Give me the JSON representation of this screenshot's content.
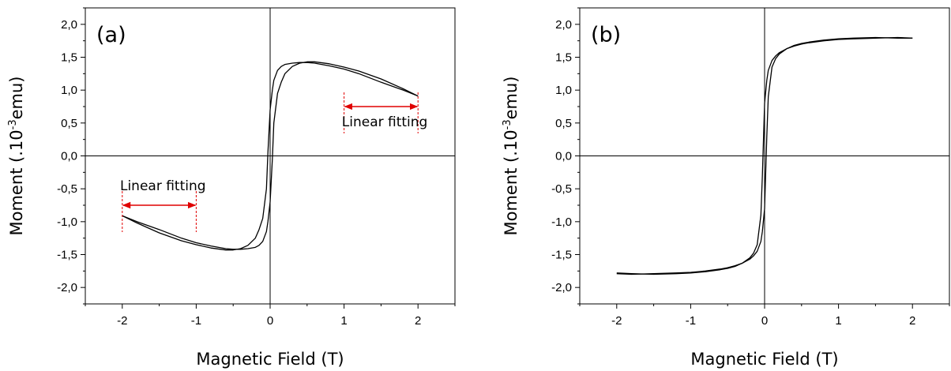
{
  "chart_data": [
    {
      "type": "line",
      "panel_label": "(a)",
      "xlabel": "Magnetic Field (T)",
      "ylabel_main": "Moment (.10",
      "ylabel_sup": "-3",
      "ylabel_end": "emu)",
      "xlim": [
        -2.5,
        2.5
      ],
      "ylim": [
        -2.25,
        2.25
      ],
      "xticks": [
        -2,
        -1,
        0,
        1,
        2
      ],
      "xtick_labels": [
        "-2",
        "-1",
        "0",
        "1",
        "2"
      ],
      "yticks": [
        -2.0,
        -1.5,
        -1.0,
        -0.5,
        0.0,
        0.5,
        1.0,
        1.5,
        2.0
      ],
      "ytick_labels": [
        "-2,0",
        "-1,5",
        "-1,0",
        "-0,5",
        "0,0",
        "0,5",
        "1,0",
        "1,5",
        "2,0"
      ],
      "reference_lines": {
        "x": 0,
        "y": 0
      },
      "series": [
        {
          "x": [
            -2.0,
            -1.8,
            -1.5,
            -1.2,
            -1.0,
            -0.8,
            -0.6,
            -0.5,
            -0.4,
            -0.3,
            -0.2,
            -0.15,
            -0.1,
            -0.05,
            -0.03,
            0.0,
            0.03,
            0.05,
            0.1,
            0.15,
            0.2,
            0.3,
            0.4,
            0.5,
            0.6,
            0.8,
            1.0,
            1.2,
            1.5,
            1.8,
            2.0
          ],
          "y": [
            -0.91,
            -1.02,
            -1.17,
            -1.29,
            -1.35,
            -1.4,
            -1.43,
            -1.43,
            -1.41,
            -1.36,
            -1.25,
            -1.12,
            -0.95,
            -0.5,
            0.05,
            0.7,
            1.0,
            1.15,
            1.3,
            1.36,
            1.39,
            1.41,
            1.42,
            1.42,
            1.41,
            1.37,
            1.32,
            1.25,
            1.12,
            1.0,
            0.91
          ],
          "color": "#000000"
        },
        {
          "x": [
            -2.0,
            -1.8,
            -1.5,
            -1.2,
            -1.0,
            -0.8,
            -0.6,
            -0.5,
            -0.4,
            -0.3,
            -0.2,
            -0.15,
            -0.1,
            -0.05,
            -0.03,
            0.0,
            0.03,
            0.05,
            0.1,
            0.15,
            0.2,
            0.3,
            0.4,
            0.5,
            0.6,
            0.8,
            1.0,
            1.2,
            1.5,
            1.8,
            2.0
          ],
          "y": [
            -0.91,
            -1.0,
            -1.12,
            -1.25,
            -1.32,
            -1.37,
            -1.41,
            -1.42,
            -1.42,
            -1.41,
            -1.39,
            -1.36,
            -1.3,
            -1.15,
            -1.0,
            -0.7,
            -0.05,
            0.5,
            0.95,
            1.12,
            1.25,
            1.36,
            1.41,
            1.43,
            1.43,
            1.4,
            1.35,
            1.29,
            1.17,
            1.02,
            0.91
          ],
          "color": "#000000"
        }
      ],
      "annotations": [
        {
          "text": "Linear fitting",
          "x_range": [
            -2,
            -1
          ],
          "arrow_y": -0.75,
          "text_x": -1.45,
          "text_y": -0.52,
          "color": "#e00000"
        },
        {
          "text": "Linear fitting",
          "x_range": [
            1,
            2
          ],
          "arrow_y": 0.75,
          "text_x": 1.55,
          "text_y": 0.45,
          "color": "#e00000"
        }
      ]
    },
    {
      "type": "line",
      "panel_label": "(b)",
      "xlabel": "Magnetic Field (T)",
      "ylabel_main": "Moment (.10",
      "ylabel_sup": "-3",
      "ylabel_end": "emu)",
      "xlim": [
        -2.5,
        2.5
      ],
      "ylim": [
        -2.25,
        2.25
      ],
      "xticks": [
        -2,
        -1,
        0,
        1,
        2
      ],
      "xtick_labels": [
        "-2",
        "-1",
        "0",
        "1",
        "2"
      ],
      "yticks": [
        -2.0,
        -1.5,
        -1.0,
        -0.5,
        0.0,
        0.5,
        1.0,
        1.5,
        2.0
      ],
      "ytick_labels": [
        "-2,0",
        "-1,5",
        "-1,0",
        "-0,5",
        "0,0",
        "0,5",
        "1,0",
        "1,5",
        "2,0"
      ],
      "reference_lines": {
        "x": 0,
        "y": 0
      },
      "series": [
        {
          "x": [
            -2.0,
            -1.8,
            -1.5,
            -1.2,
            -1.0,
            -0.8,
            -0.6,
            -0.5,
            -0.4,
            -0.3,
            -0.2,
            -0.15,
            -0.1,
            -0.05,
            -0.03,
            0.0,
            0.03,
            0.05,
            0.1,
            0.15,
            0.2,
            0.3,
            0.4,
            0.5,
            0.6,
            0.8,
            1.0,
            1.2,
            1.5,
            1.8,
            2.0
          ],
          "y": [
            -1.78,
            -1.79,
            -1.8,
            -1.79,
            -1.78,
            -1.76,
            -1.73,
            -1.71,
            -1.68,
            -1.63,
            -1.55,
            -1.48,
            -1.35,
            -0.9,
            -0.3,
            0.8,
            1.15,
            1.3,
            1.45,
            1.52,
            1.57,
            1.63,
            1.67,
            1.7,
            1.72,
            1.75,
            1.77,
            1.78,
            1.79,
            1.8,
            1.79
          ],
          "color": "#000000"
        },
        {
          "x": [
            -2.0,
            -1.8,
            -1.5,
            -1.2,
            -1.0,
            -0.8,
            -0.6,
            -0.5,
            -0.4,
            -0.3,
            -0.2,
            -0.15,
            -0.1,
            -0.05,
            -0.03,
            0.0,
            0.03,
            0.05,
            0.1,
            0.15,
            0.2,
            0.3,
            0.4,
            0.5,
            0.6,
            0.8,
            1.0,
            1.2,
            1.5,
            1.8,
            2.0
          ],
          "y": [
            -1.79,
            -1.8,
            -1.79,
            -1.78,
            -1.77,
            -1.75,
            -1.72,
            -1.7,
            -1.67,
            -1.63,
            -1.57,
            -1.52,
            -1.45,
            -1.3,
            -1.15,
            -0.8,
            0.3,
            0.9,
            1.35,
            1.48,
            1.55,
            1.63,
            1.68,
            1.71,
            1.73,
            1.76,
            1.78,
            1.79,
            1.8,
            1.79,
            1.79
          ],
          "color": "#000000"
        }
      ],
      "annotations": []
    }
  ]
}
